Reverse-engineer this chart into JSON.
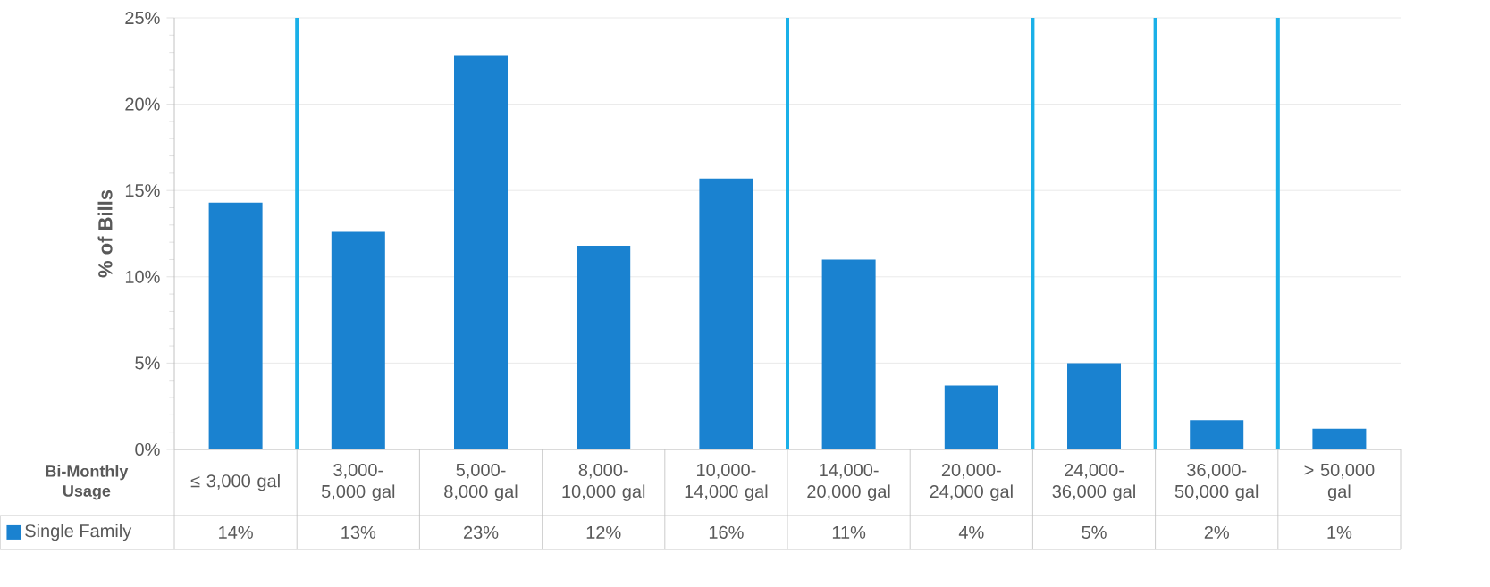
{
  "chart_data": {
    "type": "bar",
    "xlabel": "Bi-Monthly Usage",
    "ylabel": "% of Bills",
    "categories": [
      "≤ 3,000 gal",
      "3,000-5,000 gal",
      "5,000-8,000 gal",
      "8,000-10,000 gal",
      "10,000-14,000 gal",
      "14,000-20,000 gal",
      "20,000-24,000 gal",
      "24,000-36,000 gal",
      "36,000-50,000 gal",
      "> 50,000 gal"
    ],
    "series": [
      {
        "name": "Single Family",
        "color": "#1a82d0",
        "values": [
          14.3,
          12.6,
          22.8,
          11.8,
          15.7,
          11.0,
          3.7,
          5.0,
          1.7,
          1.2
        ],
        "value_labels": [
          "14%",
          "13%",
          "23%",
          "12%",
          "16%",
          "11%",
          "4%",
          "5%",
          "2%",
          "1%"
        ]
      }
    ],
    "ylim": [
      0,
      25
    ],
    "yticks": [
      {
        "value": 0,
        "label": "0%"
      },
      {
        "value": 5,
        "label": "5%"
      },
      {
        "value": 10,
        "label": "10%"
      },
      {
        "value": 15,
        "label": "15%"
      },
      {
        "value": 20,
        "label": "20%"
      },
      {
        "value": 25,
        "label": "25%"
      }
    ],
    "grid": "y",
    "legend": "bottom"
  }
}
